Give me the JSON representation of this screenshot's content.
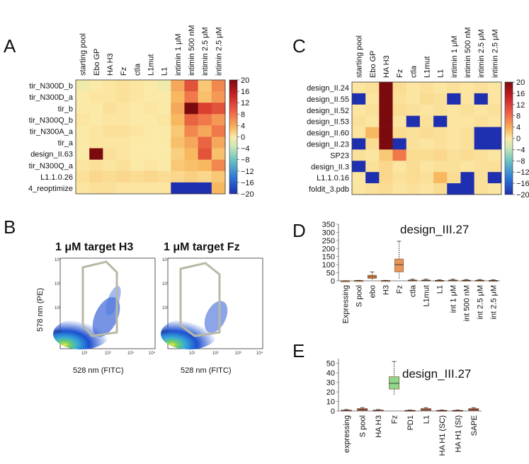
{
  "panels": {
    "A": {
      "letter": "A"
    },
    "B": {
      "letter": "B",
      "plot1_title": "1 μM target H3",
      "plot2_title": "1 μM target Fz",
      "ylabel": "578 nm (PE)",
      "xlabel1": "528 nm (FITC)",
      "xlabel2": "528 nm (FITC)",
      "xticks": [
        "10¹",
        "10²",
        "10³",
        "10⁴"
      ],
      "yticks": [
        "10⁴",
        "10³",
        "10²",
        "10¹"
      ]
    },
    "C": {
      "letter": "C"
    },
    "D": {
      "letter": "D"
    },
    "E": {
      "letter": "E"
    }
  },
  "colorbar_ticks": [
    "20",
    "16",
    "12",
    "8",
    "4",
    "0",
    "−4",
    "−8",
    "−12",
    "−16",
    "−20"
  ],
  "chart_data": [
    {
      "panel": "A",
      "type": "heatmap",
      "columns": [
        "starting pool",
        "Ebo GP",
        "HA H3",
        "Fz",
        "ctla",
        "L1mut",
        "L1",
        "intimin 1 μM",
        "intimin  500 nM",
        "intimin 2.5 μM",
        "intimin 2.5 μM"
      ],
      "rows": [
        "tir_N300D_b",
        "tir_N300D_a",
        "tir_b",
        "tir_N300Q_b",
        "tir_N300A_a",
        "tir_a",
        "design_II.63",
        "tir_N300Q_a",
        "L1.1.0.26",
        "4_reoptimize"
      ],
      "values": [
        [
          -1,
          0,
          1,
          2,
          1,
          0,
          -1,
          9,
          14,
          6,
          11
        ],
        [
          0,
          1,
          1,
          2,
          1,
          0,
          0,
          8,
          12,
          7,
          10
        ],
        [
          0,
          0,
          2,
          1,
          0,
          1,
          0,
          9,
          20,
          15,
          14
        ],
        [
          1,
          0,
          1,
          1,
          0,
          0,
          1,
          8,
          13,
          12,
          10
        ],
        [
          0,
          1,
          2,
          2,
          1,
          0,
          0,
          6,
          11,
          9,
          12
        ],
        [
          0,
          1,
          1,
          1,
          0,
          0,
          0,
          7,
          9,
          13,
          9
        ],
        [
          0,
          20,
          2,
          1,
          0,
          0,
          0,
          5,
          8,
          14,
          7
        ],
        [
          1,
          2,
          1,
          2,
          0,
          1,
          0,
          6,
          7,
          8,
          11
        ],
        [
          2,
          4,
          3,
          4,
          3,
          4,
          3,
          4,
          5,
          4,
          6
        ],
        [
          1,
          2,
          2,
          1,
          1,
          1,
          1,
          -20,
          -20,
          -20,
          8
        ]
      ],
      "vmin": -20,
      "vmax": 20
    },
    {
      "panel": "C",
      "type": "heatmap",
      "columns": [
        "starting pool",
        "Ebo GP",
        "HA H3",
        "Fz",
        "ctla",
        "L1mut",
        "L1",
        "intimin 1 μM",
        "intimin  500 nM",
        "intimin 2.5 μM",
        "intimin 2.5 μM"
      ],
      "rows": [
        "design_II.24",
        "design_II.55",
        "design_II.52",
        "design_II.53",
        "design_II.60",
        "design_II.23",
        "SP23",
        "design_II.3",
        "L1.1.0.16",
        "foldit_3.pdb"
      ],
      "values": [
        [
          1,
          2,
          20,
          3,
          1,
          2,
          1,
          2,
          1,
          2,
          1
        ],
        [
          -20,
          1,
          20,
          2,
          1,
          3,
          2,
          -20,
          1,
          -20,
          1
        ],
        [
          1,
          2,
          20,
          3,
          2,
          1,
          2,
          1,
          2,
          1,
          2
        ],
        [
          2,
          1,
          20,
          1,
          -20,
          2,
          -20,
          1,
          1,
          2,
          1
        ],
        [
          1,
          8,
          20,
          3,
          2,
          3,
          2,
          1,
          2,
          -20,
          -20
        ],
        [
          -20,
          3,
          20,
          -20,
          2,
          1,
          2,
          1,
          2,
          -20,
          -20
        ],
        [
          2,
          1,
          6,
          12,
          3,
          3,
          4,
          2,
          3,
          2,
          1
        ],
        [
          -20,
          2,
          4,
          1,
          3,
          1,
          2,
          2,
          1,
          2,
          2
        ],
        [
          1,
          -20,
          4,
          2,
          3,
          2,
          8,
          3,
          -20,
          2,
          -20
        ],
        [
          1,
          2,
          3,
          1,
          2,
          1,
          3,
          -20,
          -20,
          2,
          1
        ]
      ],
      "vmin": -20,
      "vmax": 20
    },
    {
      "panel": "D",
      "type": "box",
      "title": "design_III.27",
      "categories": [
        "Expressing",
        "S pool",
        "ebo",
        "H3",
        "Fz",
        "ctla",
        "L1mut",
        "L1",
        "int 1 μM",
        "int 500 nM",
        "int 2.5 μM",
        "int 2.5 μM"
      ],
      "yticks": [
        "350",
        "300",
        "250",
        "200",
        "150",
        "100",
        "50",
        "0"
      ],
      "ylim": [
        0,
        350
      ],
      "boxes": [
        {
          "q1": 0,
          "median": 0,
          "q3": 0,
          "low": 0,
          "high": 1
        },
        {
          "q1": 0,
          "median": 1,
          "q3": 2,
          "low": 0,
          "high": 3
        },
        {
          "q1": 15,
          "median": 25,
          "q3": 35,
          "low": 5,
          "high": 55
        },
        {
          "q1": 0,
          "median": 1,
          "q3": 2,
          "low": 0,
          "high": 3
        },
        {
          "q1": 55,
          "median": 100,
          "q3": 135,
          "low": 10,
          "high": 245
        },
        {
          "q1": 0,
          "median": 2,
          "q3": 5,
          "low": 0,
          "high": 10
        },
        {
          "q1": 0,
          "median": 2,
          "q3": 5,
          "low": 0,
          "high": 10
        },
        {
          "q1": 0,
          "median": 1,
          "q3": 3,
          "low": 0,
          "high": 6
        },
        {
          "q1": 0,
          "median": 2,
          "q3": 5,
          "low": 0,
          "high": 10
        },
        {
          "q1": 0,
          "median": 2,
          "q3": 4,
          "low": 0,
          "high": 8
        },
        {
          "q1": 0,
          "median": 2,
          "q3": 4,
          "low": 0,
          "high": 8
        },
        {
          "q1": 0,
          "median": 1,
          "q3": 3,
          "low": 0,
          "high": 6
        }
      ],
      "box_colors": [
        "#e8a96b",
        "#e8a96b",
        "#e28b4c",
        "#e8a96b",
        "#e8955a",
        "#e8a96b",
        "#e8a96b",
        "#e8a96b",
        "#e8a96b",
        "#e8a96b",
        "#e8a96b",
        "#e8a96b"
      ]
    },
    {
      "panel": "E",
      "type": "box",
      "title": "design_III.27",
      "categories": [
        "expressing",
        "S pool",
        "HA H3",
        "Fz",
        "PD1",
        "L1",
        "HA H1 (SC)",
        "HA H1 (SI)",
        "SAPE"
      ],
      "yticks": [
        "50",
        "40",
        "30",
        "20",
        "10",
        "0"
      ],
      "ylim": [
        0,
        55
      ],
      "boxes": [
        {
          "q1": 0,
          "median": 0.5,
          "q3": 1,
          "low": 0,
          "high": 1.5
        },
        {
          "q1": 0.5,
          "median": 1.5,
          "q3": 2.5,
          "low": 0,
          "high": 3.5
        },
        {
          "q1": 0,
          "median": 0.5,
          "q3": 1,
          "low": 0,
          "high": 1.5
        },
        {
          "q1": 23,
          "median": 29,
          "q3": 36,
          "low": 17,
          "high": 52
        },
        {
          "q1": 0,
          "median": 0.3,
          "q3": 0.7,
          "low": 0,
          "high": 1
        },
        {
          "q1": 0.5,
          "median": 1.5,
          "q3": 2.5,
          "low": 0,
          "high": 3.5
        },
        {
          "q1": 0,
          "median": 0.3,
          "q3": 0.7,
          "low": 0,
          "high": 1
        },
        {
          "q1": 0,
          "median": 0.3,
          "q3": 0.7,
          "low": 0,
          "high": 1
        },
        {
          "q1": 0.5,
          "median": 1.5,
          "q3": 2.5,
          "low": 0,
          "high": 3.5
        }
      ],
      "box_colors": [
        "#e89c8a",
        "#c9583f",
        "#e89c8a",
        "#8fd68c",
        "#e89c8a",
        "#d06a52",
        "#e89c8a",
        "#e89c8a",
        "#c9583f"
      ]
    }
  ]
}
